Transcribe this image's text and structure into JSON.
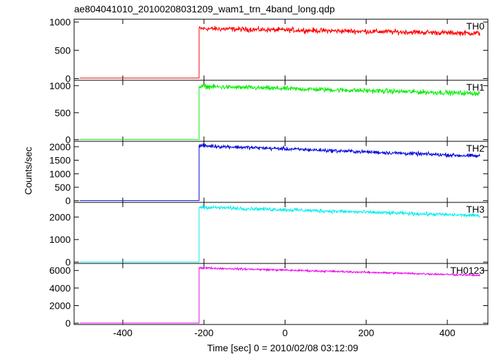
{
  "chart_data": {
    "type": "line",
    "title": "ae804041010_20100208031209_wam1_trn_4band_long.qdp",
    "xlabel": "Time [sec] 0 = 2010/02/08 03:12:09",
    "ylabel": "Counts/sec",
    "xlim": [
      -520,
      500
    ],
    "xticks": [
      -400,
      -200,
      0,
      200,
      400
    ],
    "step_time": -212,
    "data_end": 480,
    "grid": false,
    "panels": [
      {
        "name": "TH0",
        "color": "#ff0000",
        "ylim": [
          -30,
          1050
        ],
        "yticks": [
          0,
          500,
          1000
        ],
        "pre_level": 10,
        "start_level": 885,
        "end_level": 800,
        "noise": 45
      },
      {
        "name": "TH1",
        "color": "#00ee00",
        "ylim": [
          -30,
          1100
        ],
        "yticks": [
          0,
          500,
          1000
        ],
        "pre_level": 5,
        "start_level": 985,
        "end_level": 855,
        "noise": 45
      },
      {
        "name": "TH2",
        "color": "#0000dd",
        "ylim": [
          -60,
          2200
        ],
        "yticks": [
          0,
          500,
          1000,
          1500,
          2000
        ],
        "pre_level": 5,
        "start_level": 2040,
        "end_level": 1650,
        "noise": 70
      },
      {
        "name": "TH3",
        "color": "#00eeee",
        "ylim": [
          -60,
          2650
        ],
        "yticks": [
          0,
          1000,
          2000
        ],
        "pre_level": 5,
        "start_level": 2440,
        "end_level": 2060,
        "noise": 80
      },
      {
        "name": "TH0123",
        "color": "#ee00ee",
        "ylim": [
          -150,
          6800
        ],
        "yticks": [
          0,
          2000,
          4000,
          6000
        ],
        "pre_level": 15,
        "start_level": 6300,
        "end_level": 5450,
        "noise": 110
      }
    ]
  }
}
